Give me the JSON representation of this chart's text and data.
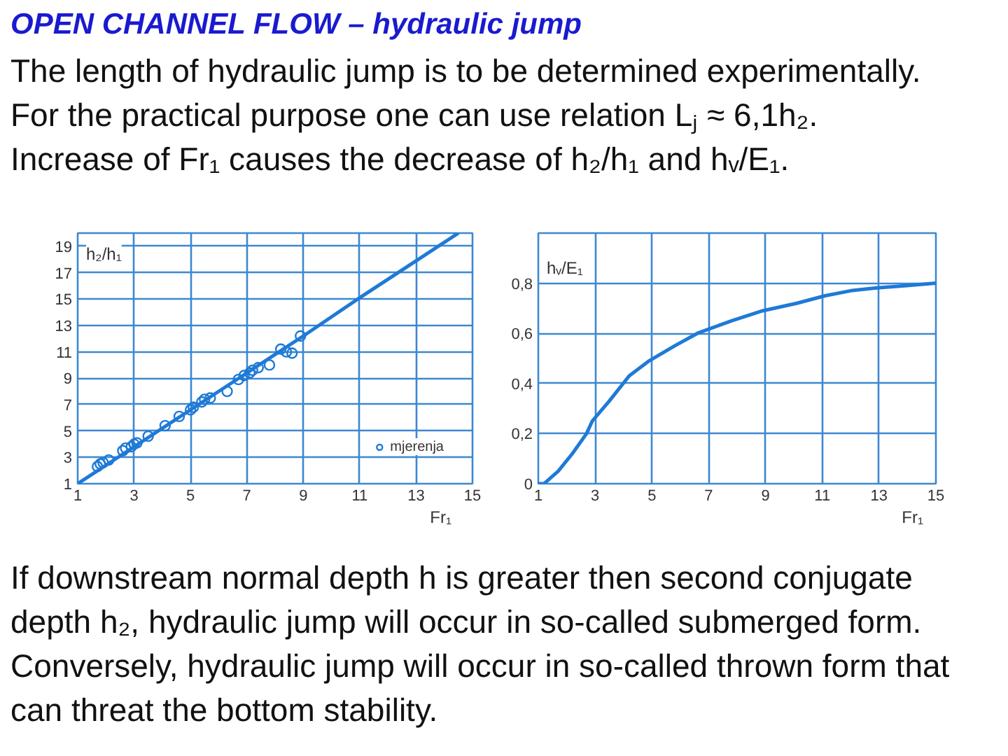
{
  "chart_data": [
    {
      "type": "other",
      "title": "OPEN CHANNEL FLOW – hydraulic jump",
      "annotations": [
        "The length of hydraulic jump is to be determined experimentally.",
        "For the practical purpose one can use relation Lⱼ ≈ 6,1h₂.",
        "Increase of Fr₁ causes the decrease of h₂/h₁ and hᵥ/E₁."
      ]
    },
    {
      "type": "scatter",
      "xlabel": "Fr₁",
      "ylabel": "h₂/h₁",
      "xlim": [
        1,
        15
      ],
      "ylim": [
        1,
        20
      ],
      "xticks": [
        1,
        3,
        5,
        7,
        9,
        11,
        13,
        15
      ],
      "yticks": [
        1,
        3,
        5,
        7,
        9,
        11,
        13,
        15,
        17,
        19
      ],
      "grid": true,
      "legend": "bottom right",
      "series": [
        {
          "type": "line",
          "color": "#1f7ad6",
          "x": [
            1,
            3,
            5,
            7,
            9,
            11,
            13,
            14.5
          ],
          "values": [
            1,
            3.8,
            6.6,
            9.4,
            12.2,
            15.1,
            17.9,
            20
          ]
        },
        {
          "type": "scatter",
          "name": "mjerenja",
          "color": "#1f7ad6",
          "marker": "circle",
          "x": [
            1.7,
            1.8,
            1.9,
            2.1,
            2.6,
            2.7,
            2.9,
            3.0,
            3.1,
            3.5,
            4.1,
            4.6,
            5.0,
            5.1,
            5.4,
            5.5,
            5.7,
            6.3,
            6.7,
            6.9,
            7.1,
            7.2,
            7.4,
            7.8,
            8.2,
            8.4,
            8.6,
            8.9
          ],
          "values": [
            2.3,
            2.5,
            2.6,
            2.8,
            3.5,
            3.7,
            3.8,
            4.0,
            4.1,
            4.6,
            5.4,
            6.1,
            6.6,
            6.8,
            7.2,
            7.4,
            7.5,
            8.0,
            8.9,
            9.2,
            9.4,
            9.6,
            9.8,
            10.0,
            11.2,
            11.0,
            10.9,
            12.2
          ]
        }
      ]
    },
    {
      "type": "line",
      "xlabel": "Fr₁",
      "ylabel": "hᵥ/E₁",
      "xlim": [
        1,
        15
      ],
      "ylim": [
        0,
        1
      ],
      "xticks": [
        1,
        3,
        5,
        7,
        9,
        11,
        13,
        15
      ],
      "yticks": [
        0,
        {
          "value": 0.2,
          "label": "0,2"
        },
        {
          "value": 0.4,
          "label": "0,4"
        },
        {
          "value": 0.6,
          "label": "0,6"
        },
        {
          "value": 0.8,
          "label": "0,8"
        }
      ],
      "grid": true,
      "series": [
        {
          "color": "#1f7ad6",
          "x": [
            1,
            1.2,
            1.7,
            2.2,
            2.7,
            2.9,
            3.5,
            4.2,
            4.9,
            5.8,
            6.6,
            7.8,
            8.9,
            10.1,
            11.1,
            12,
            12.8,
            13.9,
            15
          ],
          "values": [
            0,
            0,
            0.05,
            0.12,
            0.2,
            0.25,
            0.33,
            0.43,
            0.49,
            0.55,
            0.6,
            0.65,
            0.69,
            0.72,
            0.75,
            0.77,
            0.78,
            0.79,
            0.8
          ]
        }
      ]
    },
    {
      "type": "other",
      "annotations": [
        "If downstream normal depth h is greater then second conjugate depth h₂, hydraulic jump will occur in so-called submerged form. Conversely, hydraulic jump will occur in so-called thrown form that can threat the bottom stability."
      ]
    }
  ]
}
